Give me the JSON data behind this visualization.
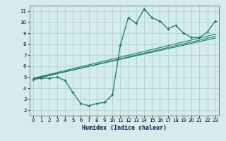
{
  "xlabel": "Humidex (Indice chaleur)",
  "ylabel": "",
  "background_color": "#d4ecec",
  "grid_color": "#afd4d4",
  "line_color": "#1a7a6a",
  "xlim": [
    -0.5,
    23.5
  ],
  "ylim": [
    1.5,
    11.5
  ],
  "xticks": [
    0,
    1,
    2,
    3,
    4,
    5,
    6,
    7,
    8,
    9,
    10,
    11,
    12,
    13,
    14,
    15,
    16,
    17,
    18,
    19,
    20,
    21,
    22,
    23
  ],
  "yticks": [
    2,
    3,
    4,
    5,
    6,
    7,
    8,
    9,
    10,
    11
  ],
  "main_x": [
    0,
    1,
    2,
    3,
    4,
    5,
    6,
    7,
    8,
    9,
    10,
    11,
    12,
    13,
    14,
    15,
    16,
    17,
    18,
    19,
    20,
    21,
    22,
    23
  ],
  "main_y": [
    4.8,
    4.9,
    4.9,
    5.0,
    4.7,
    3.6,
    2.6,
    2.4,
    2.6,
    2.7,
    3.4,
    7.9,
    10.4,
    9.9,
    11.2,
    10.4,
    10.1,
    9.4,
    9.7,
    9.0,
    8.6,
    8.6,
    9.1,
    10.1
  ],
  "line1_x": [
    0,
    23
  ],
  "line1_y": [
    4.8,
    8.7
  ],
  "line2_x": [
    0,
    23
  ],
  "line2_y": [
    4.85,
    8.55
  ],
  "line3_x": [
    0,
    23
  ],
  "line3_y": [
    4.9,
    8.9
  ]
}
